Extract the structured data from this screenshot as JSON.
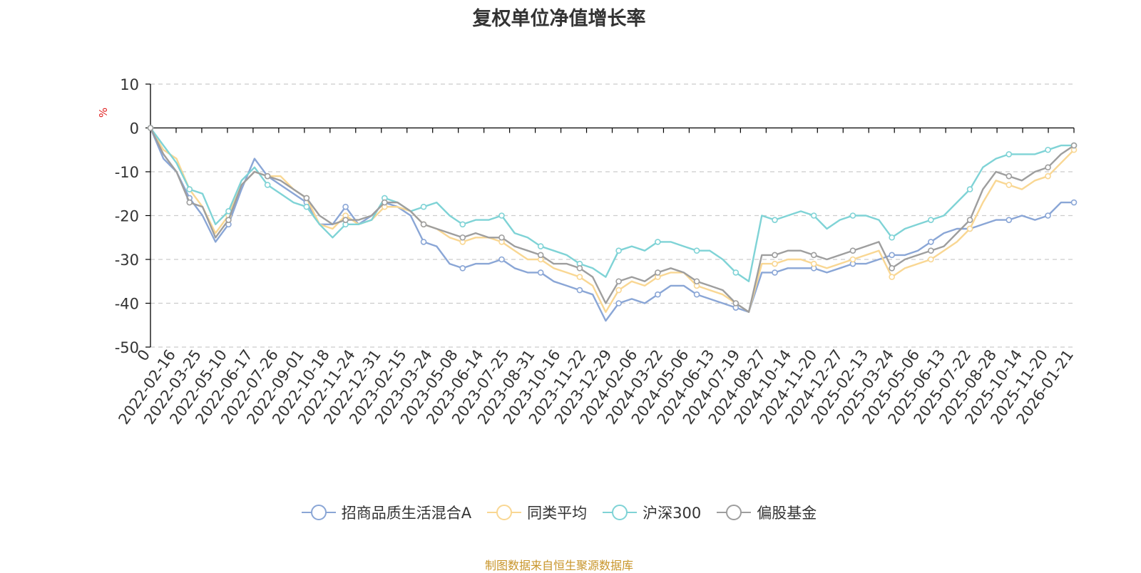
{
  "chart_data": {
    "type": "line",
    "title": "复权单位净值增长率",
    "ylabel": "%",
    "ylim": [
      -50,
      10
    ],
    "yticks": [
      10,
      0,
      -10,
      -20,
      -30,
      -40,
      -50
    ],
    "x_tick_labels": [
      "0",
      "2022-02-16",
      "2022-03-25",
      "2022-05-10",
      "2022-06-17",
      "2022-07-26",
      "2022-09-01",
      "2022-10-18",
      "2022-11-24",
      "2022-12-31",
      "2023-02-15",
      "2023-03-24",
      "2023-05-08",
      "2023-06-14",
      "2023-07-25",
      "2023-08-31",
      "2023-10-16",
      "2023-11-22",
      "2023-12-29",
      "2024-02-06",
      "2024-03-22",
      "2024-05-06",
      "2024-06-13",
      "2024-07-19",
      "2024-08-27",
      "2024-10-14",
      "2024-11-20",
      "2024-12-27",
      "2025-02-13",
      "2025-03-24",
      "2025-05-06",
      "2025-06-13",
      "2025-07-22",
      "2025-08-28",
      "2025-10-14",
      "2025-11-20",
      "2026-01-21"
    ],
    "series": [
      {
        "name": "招商品质生活混合A",
        "color": "#8aa6d6",
        "values": [
          0,
          -7,
          -10,
          -16,
          -20,
          -26,
          -22,
          -14,
          -7,
          -11,
          -13,
          -15,
          -17,
          -22,
          -22,
          -18,
          -22,
          -20,
          -17,
          -18,
          -20,
          -26,
          -27,
          -31,
          -32,
          -31,
          -31,
          -30,
          -32,
          -33,
          -33,
          -35,
          -36,
          -37,
          -38,
          -44,
          -40,
          -39,
          -40,
          -38,
          -36,
          -36,
          -38,
          -39,
          -40,
          -41,
          -42,
          -33,
          -33,
          -32,
          -32,
          -32,
          -33,
          -32,
          -31,
          -31,
          -30,
          -29,
          -29,
          -28,
          -26,
          -24,
          -23,
          -23,
          -22,
          -21,
          -21,
          -20,
          -21,
          -20,
          -17,
          -17
        ]
      },
      {
        "name": "同类平均",
        "color": "#f9d793",
        "values": [
          0,
          -5,
          -7,
          -14,
          -18,
          -24,
          -20,
          -13,
          -10,
          -11,
          -11,
          -14,
          -16,
          -22,
          -23,
          -20,
          -22,
          -21,
          -18,
          -18,
          -19,
          -22,
          -23,
          -25,
          -26,
          -25,
          -25,
          -26,
          -28,
          -30,
          -30,
          -32,
          -33,
          -34,
          -36,
          -42,
          -37,
          -35,
          -36,
          -34,
          -33,
          -33,
          -36,
          -37,
          -38,
          -40,
          -42,
          -31,
          -31,
          -30,
          -30,
          -31,
          -32,
          -31,
          -30,
          -29,
          -28,
          -34,
          -32,
          -31,
          -30,
          -28,
          -26,
          -23,
          -17,
          -12,
          -13,
          -14,
          -12,
          -11,
          -8,
          -5
        ]
      },
      {
        "name": "沪深300",
        "color": "#7fd3d6",
        "values": [
          0,
          -4,
          -8,
          -14,
          -15,
          -22,
          -19,
          -12,
          -9,
          -13,
          -15,
          -17,
          -18,
          -22,
          -25,
          -22,
          -22,
          -21,
          -16,
          -17,
          -19,
          -18,
          -17,
          -20,
          -22,
          -21,
          -21,
          -20,
          -24,
          -25,
          -27,
          -28,
          -29,
          -31,
          -32,
          -34,
          -28,
          -27,
          -28,
          -26,
          -26,
          -27,
          -28,
          -28,
          -30,
          -33,
          -35,
          -20,
          -21,
          -20,
          -19,
          -20,
          -23,
          -21,
          -20,
          -20,
          -21,
          -25,
          -23,
          -22,
          -21,
          -20,
          -17,
          -14,
          -9,
          -7,
          -6,
          -6,
          -6,
          -5,
          -4,
          -4
        ]
      },
      {
        "name": "偏股基金",
        "color": "#9e9e9e",
        "values": [
          0,
          -6,
          -10,
          -17,
          -18,
          -25,
          -21,
          -13,
          -10,
          -11,
          -12,
          -14,
          -16,
          -20,
          -22,
          -21,
          -21,
          -20,
          -17,
          -17,
          -19,
          -22,
          -23,
          -24,
          -25,
          -24,
          -25,
          -25,
          -27,
          -28,
          -29,
          -31,
          -31,
          -32,
          -34,
          -40,
          -35,
          -34,
          -35,
          -33,
          -32,
          -33,
          -35,
          -36,
          -37,
          -40,
          -42,
          -29,
          -29,
          -28,
          -28,
          -29,
          -30,
          -29,
          -28,
          -27,
          -26,
          -32,
          -30,
          -29,
          -28,
          -27,
          -24,
          -21,
          -14,
          -10,
          -11,
          -12,
          -10,
          -9,
          -6,
          -4
        ]
      }
    ]
  },
  "legend": {
    "items": [
      "招商品质生活混合A",
      "同类平均",
      "沪深300",
      "偏股基金"
    ]
  },
  "source_note": "制图数据来自恒生聚源数据库",
  "colors": {
    "axis": "#000000",
    "grid": "#cccccc",
    "unit_label": "#e02020",
    "title": "#333333",
    "source": "#c8952a"
  }
}
